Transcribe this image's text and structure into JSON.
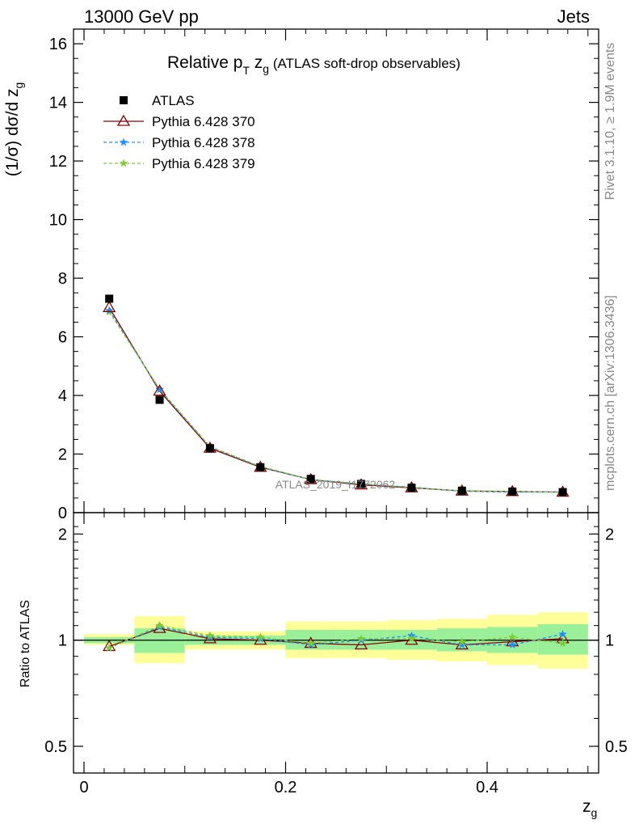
{
  "header": {
    "left": "13000 GeV pp",
    "right": "Jets"
  },
  "title": {
    "prefix": "Relative p",
    "sub1": "T",
    "mid": " z",
    "sub2": "g",
    "suffix": " (ATLAS soft-drop observables)"
  },
  "side_labels": {
    "rivet": "Rivet 3.1.10, ≥ 1.9M events",
    "mcplots": "mcplots.cern.ch [arXiv:1306.3436]"
  },
  "watermark": "ATLAS_2019_I1772062",
  "legend": [
    {
      "label": "ATLAS",
      "color": "#000000",
      "marker": "square",
      "dash": ""
    },
    {
      "label": "Pythia 6.428 370",
      "color": "#8b0000",
      "marker": "triangle",
      "dash": ""
    },
    {
      "label": "Pythia 6.428 378",
      "color": "#1e90ff",
      "marker": "star",
      "dash": "4,3"
    },
    {
      "label": "Pythia 6.428 379",
      "color": "#7ccd32",
      "marker": "star",
      "dash": "4,3"
    }
  ],
  "chart_data": [
    {
      "type": "line",
      "panel": "main",
      "ylabel": "(1/σ) dσ/d z",
      "ylabel_sub": "g",
      "xlim": [
        0,
        0.5
      ],
      "ylim": [
        0,
        16.5
      ],
      "y_ticks": [
        0,
        2,
        4,
        6,
        8,
        10,
        12,
        14,
        16
      ],
      "x": [
        0.025,
        0.075,
        0.125,
        0.175,
        0.225,
        0.275,
        0.325,
        0.375,
        0.425,
        0.475
      ],
      "series": [
        {
          "name": "ATLAS",
          "values": [
            7.3,
            3.85,
            2.2,
            1.55,
            1.15,
            0.98,
            0.85,
            0.75,
            0.72,
            0.7
          ]
        },
        {
          "name": "Pythia 6.428 370",
          "values": [
            7.0,
            4.15,
            2.2,
            1.55,
            1.13,
            0.95,
            0.85,
            0.74,
            0.72,
            0.7
          ]
        },
        {
          "name": "Pythia 6.428 378",
          "values": [
            6.9,
            4.2,
            2.25,
            1.56,
            1.12,
            0.98,
            0.87,
            0.73,
            0.7,
            0.71
          ]
        },
        {
          "name": "Pythia 6.428 379",
          "values": [
            6.85,
            4.22,
            2.25,
            1.58,
            1.13,
            0.99,
            0.86,
            0.74,
            0.73,
            0.69
          ]
        }
      ]
    },
    {
      "type": "line",
      "panel": "ratio",
      "ylabel": "Ratio to ATLAS",
      "xlabel": "z",
      "xlabel_sub": "g",
      "xlim": [
        0,
        0.5
      ],
      "ylim": [
        0.42,
        2.3
      ],
      "log_scale_y": true,
      "y_ticks": [
        0.5,
        1,
        2
      ],
      "x_ticks": [
        0,
        0.2,
        0.4
      ],
      "x_tick_labels": [
        "0",
        "0.2",
        "0.4"
      ],
      "bins": [
        0,
        0.05,
        0.1,
        0.15,
        0.2,
        0.25,
        0.3,
        0.35,
        0.4,
        0.45,
        0.5
      ],
      "band_stat": [
        [
          0.98,
          1.02
        ],
        [
          0.92,
          1.08
        ],
        [
          0.97,
          1.03
        ],
        [
          0.97,
          1.03
        ],
        [
          0.94,
          1.07
        ],
        [
          0.94,
          1.07
        ],
        [
          0.94,
          1.07
        ],
        [
          0.93,
          1.08
        ],
        [
          0.92,
          1.09
        ],
        [
          0.91,
          1.11
        ]
      ],
      "band_total": [
        [
          0.97,
          1.04
        ],
        [
          0.86,
          1.17
        ],
        [
          0.94,
          1.06
        ],
        [
          0.94,
          1.06
        ],
        [
          0.89,
          1.13
        ],
        [
          0.89,
          1.13
        ],
        [
          0.88,
          1.14
        ],
        [
          0.87,
          1.15
        ],
        [
          0.85,
          1.18
        ],
        [
          0.83,
          1.2
        ]
      ],
      "x": [
        0.025,
        0.075,
        0.125,
        0.175,
        0.225,
        0.275,
        0.325,
        0.375,
        0.425,
        0.475
      ],
      "series": [
        {
          "name": "Pythia 6.428 370",
          "values": [
            0.96,
            1.08,
            1.01,
            1.0,
            0.98,
            0.97,
            1.0,
            0.97,
            0.99,
            1.01
          ]
        },
        {
          "name": "Pythia 6.428 378",
          "values": [
            0.95,
            1.09,
            1.02,
            1.01,
            0.97,
            1.0,
            1.03,
            0.97,
            0.97,
            1.04
          ]
        },
        {
          "name": "Pythia 6.428 379",
          "values": [
            0.95,
            1.1,
            1.03,
            1.02,
            0.98,
            1.01,
            1.01,
            0.99,
            1.02,
            0.98
          ]
        }
      ]
    }
  ]
}
